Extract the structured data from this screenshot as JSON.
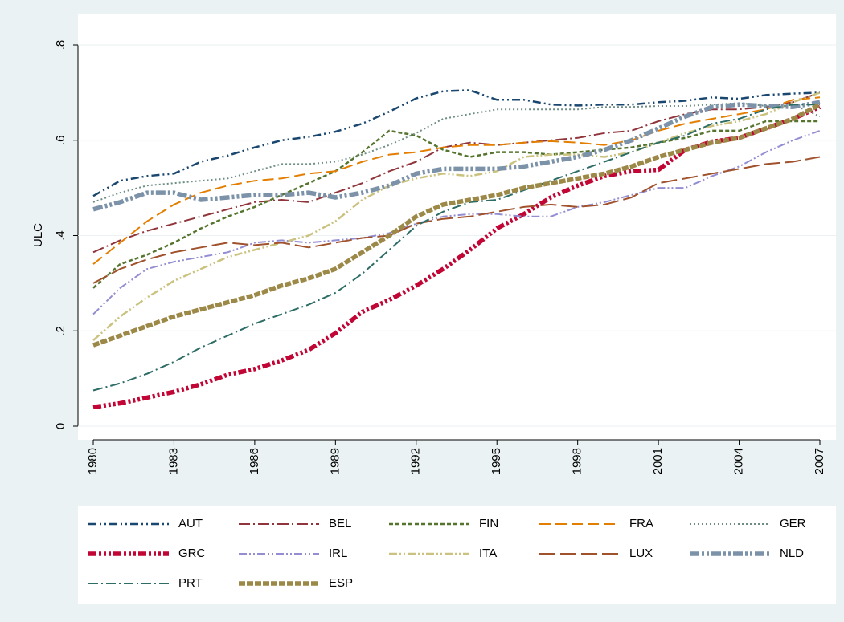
{
  "chart_data": {
    "type": "line",
    "y_label": "ULC",
    "x": [
      1980,
      1981,
      1982,
      1983,
      1984,
      1985,
      1986,
      1987,
      1988,
      1989,
      1990,
      1991,
      1992,
      1993,
      1994,
      1995,
      1996,
      1997,
      1998,
      1999,
      2000,
      2001,
      2002,
      2003,
      2004,
      2005,
      2006,
      2007
    ],
    "xlim": [
      1980,
      2007
    ],
    "xticks": [
      1980,
      1983,
      1986,
      1989,
      1992,
      1995,
      1998,
      2001,
      2004,
      2007
    ],
    "ylim": [
      0,
      0.8
    ],
    "yticks": [
      0,
      {
        "value": 0.2,
        "label": ".2"
      },
      {
        "value": 0.4,
        "label": ".4"
      },
      {
        "value": 0.6,
        "label": ".6"
      },
      {
        "value": 0.8,
        "label": ".8"
      }
    ],
    "grid": true,
    "series": [
      {
        "name": "AUT",
        "color": "#1a476f",
        "values": [
          0.483,
          0.515,
          0.525,
          0.53,
          0.555,
          0.568,
          0.585,
          0.6,
          0.607,
          0.618,
          0.635,
          0.66,
          0.688,
          0.703,
          0.705,
          0.685,
          0.685,
          0.675,
          0.673,
          0.675,
          0.675,
          0.68,
          0.683,
          0.69,
          0.687,
          0.695,
          0.698,
          0.7
        ]
      },
      {
        "name": "BEL",
        "color": "#90353b",
        "values": [
          0.365,
          0.39,
          0.41,
          0.425,
          0.44,
          0.455,
          0.47,
          0.475,
          0.47,
          0.49,
          0.51,
          0.535,
          0.555,
          0.585,
          0.595,
          0.59,
          0.595,
          0.6,
          0.605,
          0.615,
          0.62,
          0.64,
          0.655,
          0.665,
          0.665,
          0.67,
          0.68,
          0.7
        ]
      },
      {
        "name": "FIN",
        "color": "#55752f",
        "values": [
          0.29,
          0.34,
          0.36,
          0.385,
          0.415,
          0.44,
          0.46,
          0.485,
          0.51,
          0.535,
          0.575,
          0.62,
          0.61,
          0.58,
          0.565,
          0.575,
          0.575,
          0.57,
          0.575,
          0.58,
          0.585,
          0.595,
          0.605,
          0.62,
          0.62,
          0.64,
          0.64,
          0.64
        ]
      },
      {
        "name": "FRA",
        "color": "#e37e00",
        "values": [
          0.34,
          0.385,
          0.43,
          0.465,
          0.49,
          0.505,
          0.515,
          0.52,
          0.53,
          0.535,
          0.555,
          0.57,
          0.575,
          0.585,
          0.59,
          0.59,
          0.595,
          0.598,
          0.595,
          0.59,
          0.6,
          0.62,
          0.635,
          0.645,
          0.655,
          0.665,
          0.685,
          0.69
        ]
      },
      {
        "name": "GER",
        "color": "#6e8e84",
        "values": [
          0.47,
          0.49,
          0.505,
          0.51,
          0.515,
          0.52,
          0.535,
          0.55,
          0.55,
          0.555,
          0.57,
          0.59,
          0.615,
          0.645,
          0.655,
          0.665,
          0.665,
          0.665,
          0.665,
          0.67,
          0.67,
          0.672,
          0.672,
          0.675,
          0.678,
          0.672,
          0.675,
          0.65
        ]
      },
      {
        "name": "GRC",
        "color": "#c10534",
        "values": [
          0.04,
          0.048,
          0.06,
          0.072,
          0.088,
          0.108,
          0.12,
          0.138,
          0.16,
          0.195,
          0.24,
          0.265,
          0.295,
          0.33,
          0.37,
          0.415,
          0.445,
          0.48,
          0.505,
          0.525,
          0.535,
          0.538,
          0.58,
          0.597,
          0.605,
          0.625,
          0.645,
          0.67
        ]
      },
      {
        "name": "IRL",
        "color": "#938dd2",
        "values": [
          0.235,
          0.29,
          0.33,
          0.345,
          0.355,
          0.365,
          0.385,
          0.39,
          0.385,
          0.39,
          0.395,
          0.405,
          0.425,
          0.44,
          0.445,
          0.445,
          0.44,
          0.44,
          0.46,
          0.47,
          0.485,
          0.5,
          0.5,
          0.525,
          0.545,
          0.575,
          0.6,
          0.62
        ]
      },
      {
        "name": "ITA",
        "color": "#cac27e",
        "values": [
          0.18,
          0.23,
          0.27,
          0.305,
          0.33,
          0.355,
          0.37,
          0.385,
          0.4,
          0.43,
          0.475,
          0.505,
          0.52,
          0.53,
          0.525,
          0.535,
          0.565,
          0.57,
          0.57,
          0.565,
          0.575,
          0.595,
          0.615,
          0.63,
          0.64,
          0.655,
          0.68,
          0.7
        ]
      },
      {
        "name": "LUX",
        "color": "#a0522d",
        "values": [
          0.3,
          0.33,
          0.35,
          0.365,
          0.375,
          0.385,
          0.38,
          0.385,
          0.375,
          0.385,
          0.395,
          0.4,
          0.425,
          0.435,
          0.44,
          0.45,
          0.46,
          0.465,
          0.46,
          0.465,
          0.48,
          0.51,
          0.52,
          0.53,
          0.54,
          0.55,
          0.555,
          0.565
        ]
      },
      {
        "name": "NLD",
        "color": "#7b92a8",
        "values": [
          0.455,
          0.47,
          0.49,
          0.49,
          0.475,
          0.48,
          0.485,
          0.485,
          0.49,
          0.48,
          0.49,
          0.505,
          0.53,
          0.54,
          0.54,
          0.54,
          0.545,
          0.555,
          0.565,
          0.58,
          0.6,
          0.625,
          0.65,
          0.67,
          0.675,
          0.672,
          0.67,
          0.68
        ]
      },
      {
        "name": "PRT",
        "color": "#2d6d66",
        "values": [
          0.075,
          0.09,
          0.11,
          0.135,
          0.165,
          0.19,
          0.215,
          0.235,
          0.255,
          0.28,
          0.32,
          0.37,
          0.42,
          0.45,
          0.47,
          0.475,
          0.495,
          0.515,
          0.535,
          0.555,
          0.575,
          0.595,
          0.61,
          0.635,
          0.645,
          0.665,
          0.675,
          0.675
        ]
      },
      {
        "name": "ESP",
        "color": "#9c8847",
        "values": [
          0.17,
          0.19,
          0.21,
          0.23,
          0.245,
          0.26,
          0.275,
          0.295,
          0.31,
          0.33,
          0.365,
          0.4,
          0.44,
          0.465,
          0.475,
          0.485,
          0.5,
          0.51,
          0.52,
          0.53,
          0.545,
          0.565,
          0.58,
          0.595,
          0.605,
          0.625,
          0.645,
          0.675
        ]
      }
    ]
  }
}
